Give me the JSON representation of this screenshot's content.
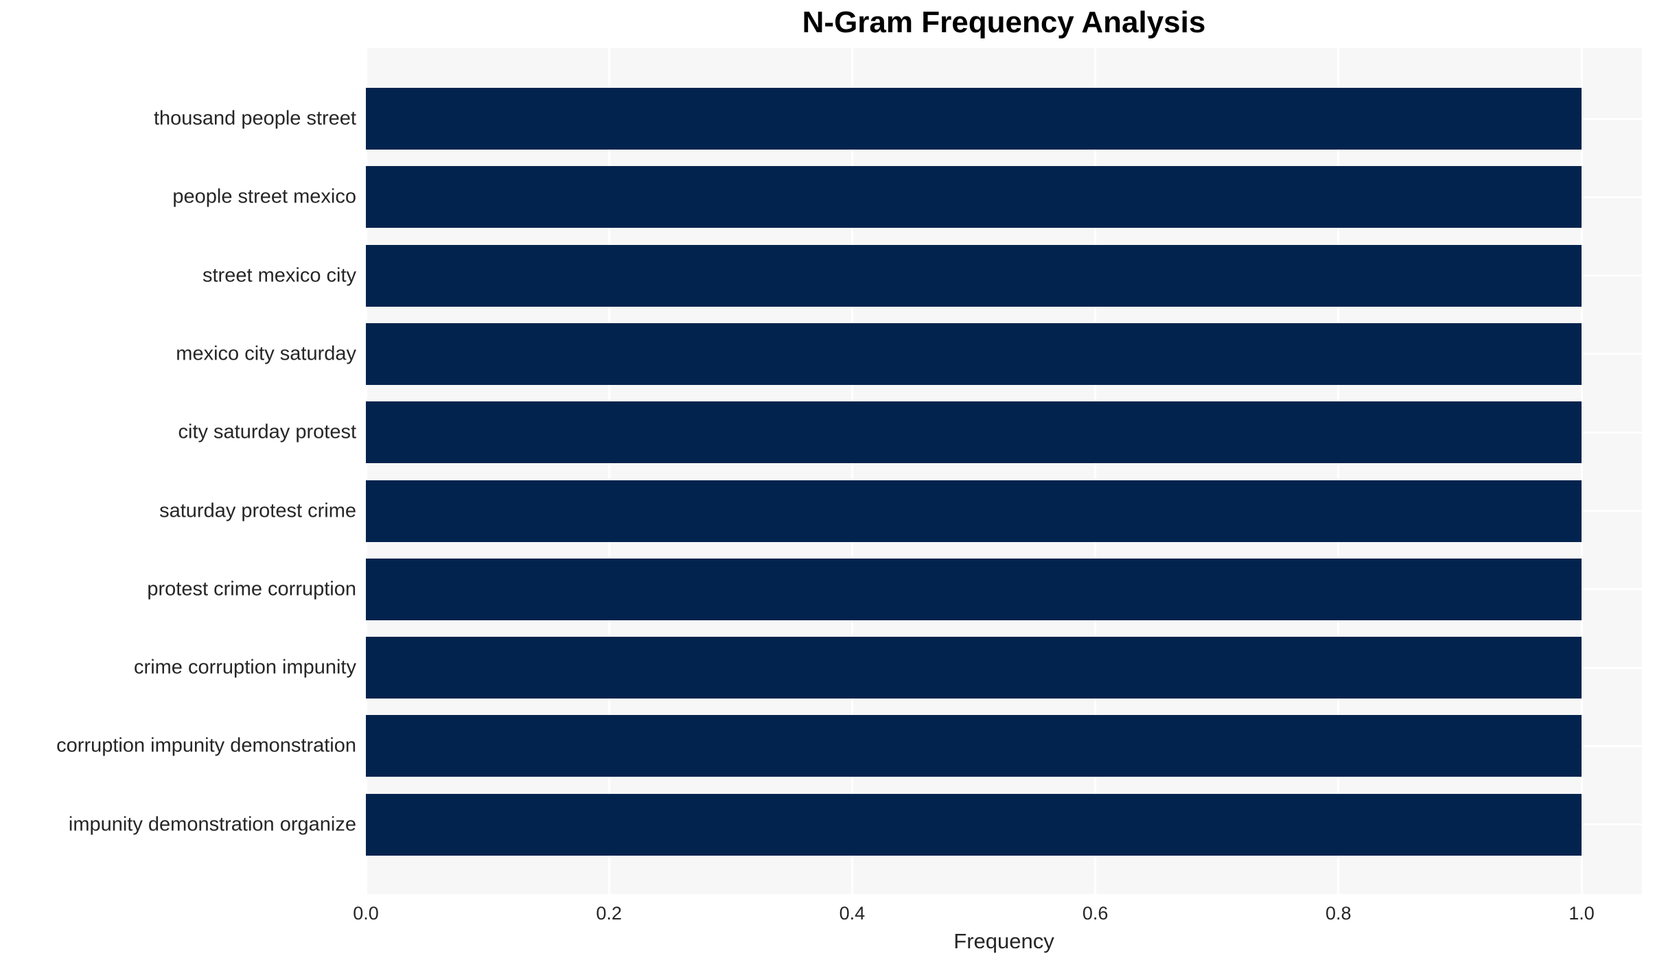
{
  "chart_data": {
    "type": "bar",
    "orientation": "horizontal",
    "title": "N-Gram Frequency Analysis",
    "xlabel": "Frequency",
    "ylabel": "",
    "categories": [
      "thousand people street",
      "people street mexico",
      "street mexico city",
      "mexico city saturday",
      "city saturday protest",
      "saturday protest crime",
      "protest crime corruption",
      "crime corruption impunity",
      "corruption impunity demonstration",
      "impunity demonstration organize"
    ],
    "values": [
      1.0,
      1.0,
      1.0,
      1.0,
      1.0,
      1.0,
      1.0,
      1.0,
      1.0,
      1.0
    ],
    "xlim": [
      0.0,
      1.05
    ],
    "xticks": [
      {
        "label": "0.0",
        "value": 0.0
      },
      {
        "label": "0.2",
        "value": 0.2
      },
      {
        "label": "0.4",
        "value": 0.4
      },
      {
        "label": "0.6",
        "value": 0.6
      },
      {
        "label": "0.8",
        "value": 0.8
      },
      {
        "label": "1.0",
        "value": 1.0
      }
    ],
    "grid": true,
    "legend": null,
    "colors": {
      "bar": "#02234d",
      "plot_background": "#f7f7f7",
      "gridline": "#ffffff",
      "title_text": "#000000",
      "label_text": "#262626"
    }
  }
}
